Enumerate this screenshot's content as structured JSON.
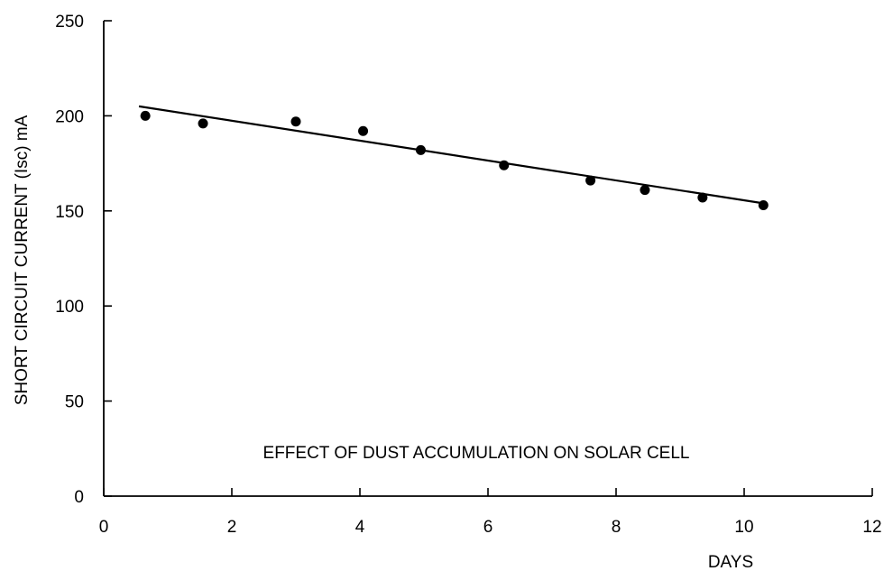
{
  "chart_data": {
    "type": "scatter",
    "title": "",
    "xlabel": "DAYS",
    "ylabel": "SHORT CIRCUIT CURRENT (Isc) mA",
    "annotation": "EFFECT OF DUST ACCUMULATION ON SOLAR CELL",
    "xlim": [
      0,
      12
    ],
    "ylim": [
      0,
      250
    ],
    "xticks": [
      0,
      2,
      4,
      6,
      8,
      10,
      12
    ],
    "yticks": [
      0,
      50,
      100,
      150,
      200,
      250
    ],
    "grid": false,
    "legend": "none",
    "series": [
      {
        "x": [
          0.65,
          1.55,
          3.0,
          4.05,
          4.95,
          6.25,
          7.6,
          8.45,
          9.35,
          10.3
        ],
        "y": [
          200,
          196,
          197,
          192,
          182,
          174,
          166,
          161,
          157,
          153
        ]
      }
    ],
    "trendline": {
      "x": [
        0.55,
        10.3
      ],
      "y": [
        205,
        154
      ]
    },
    "colors": {
      "marker": "#000000",
      "line": "#000000",
      "axis": "#000000"
    }
  }
}
